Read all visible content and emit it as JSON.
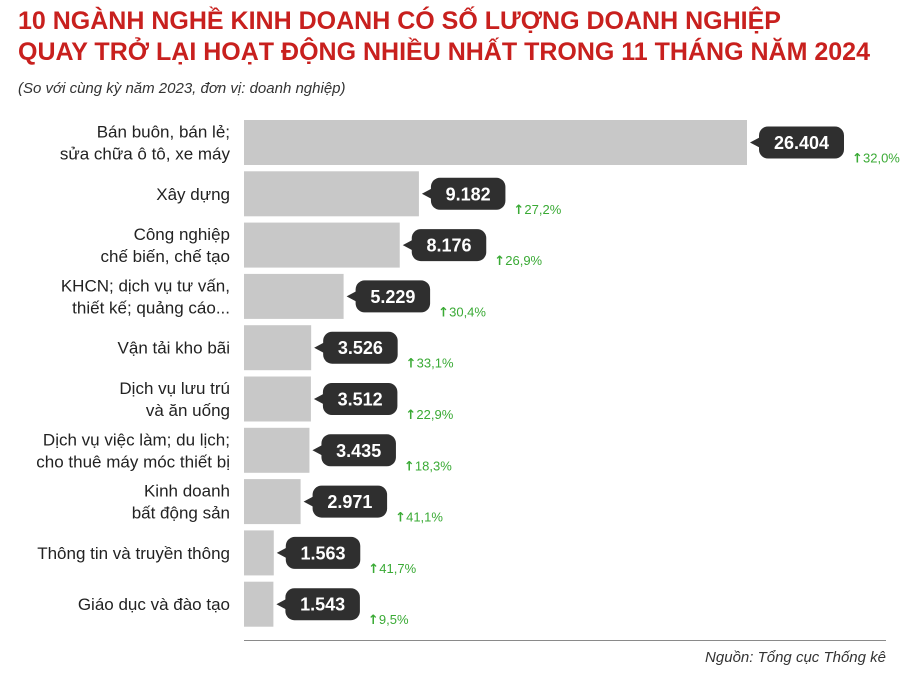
{
  "title_line1": "10 NGÀNH NGHỀ KINH DOANH CÓ SỐ LƯỢNG DOANH NGHIỆP",
  "title_line2": "QUAY TRỞ LẠI HOẠT ĐỘNG NHIỀU NHẤT TRONG 11 THÁNG NĂM 2024",
  "subtitle": "(So với cùng kỳ năm 2023, đơn vị: doanh nghiệp)",
  "source": "Nguồn: Tổng cục Thống kê",
  "colors": {
    "title": "#c8201e",
    "bar": "#c8c8c8",
    "label_bg": "#2f2f2f",
    "label_text": "#ffffff",
    "growth": "#3aaa35"
  },
  "chart_data": {
    "type": "bar",
    "orientation": "horizontal",
    "categories": [
      [
        "Bán buôn, bán lẻ;",
        "sửa chữa ô tô, xe máy"
      ],
      [
        "Xây dựng"
      ],
      [
        "Công nghiệp",
        "chế biến, chế tạo"
      ],
      [
        "KHCN; dịch vụ tư vấn,",
        "thiết kế; quảng cáo..."
      ],
      [
        "Vận tải kho bãi"
      ],
      [
        "Dịch vụ lưu trú",
        "và ăn uống"
      ],
      [
        "Dịch vụ việc làm; du lịch;",
        "cho thuê máy móc thiết bị"
      ],
      [
        "Kinh doanh",
        "bất động sản"
      ],
      [
        "Thông tin và truyền thông"
      ],
      [
        "Giáo dục và đào tạo"
      ]
    ],
    "values": [
      26404,
      9182,
      8176,
      5229,
      3526,
      3512,
      3435,
      2971,
      1563,
      1543
    ],
    "value_labels": [
      "26.404",
      "9.182",
      "8.176",
      "5.229",
      "3.526",
      "3.512",
      "3.435",
      "2.971",
      "1.563",
      "1.543"
    ],
    "growth_labels": [
      "32,0%",
      "27,2%",
      "26,9%",
      "30,4%",
      "33,1%",
      "22,9%",
      "18,3%",
      "41,1%",
      "41,7%",
      "9,5%"
    ],
    "xlim": [
      0,
      26404
    ]
  }
}
